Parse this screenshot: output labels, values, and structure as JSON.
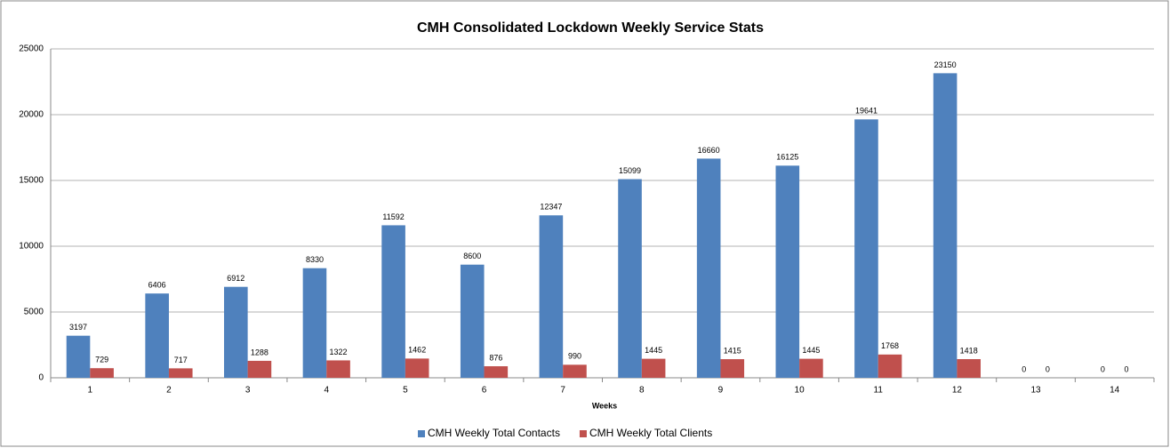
{
  "chart_data": {
    "type": "bar",
    "title": "CMH Consolidated Lockdown Weekly Service Stats",
    "x_label": "Weeks",
    "categories": [
      "1",
      "2",
      "3",
      "4",
      "5",
      "6",
      "7",
      "8",
      "9",
      "10",
      "11",
      "12",
      "13",
      "14"
    ],
    "series": [
      {
        "name": "CMH Weekly Total Contacts",
        "color": "#4f81bd",
        "values": [
          3197,
          6406,
          6912,
          8330,
          11592,
          8600,
          12347,
          15099,
          16660,
          16125,
          19641,
          23150,
          0,
          0
        ]
      },
      {
        "name": "CMH Weekly Total Clients",
        "color": "#c0504d",
        "values": [
          729,
          717,
          1288,
          1322,
          1462,
          876,
          990,
          1445,
          1415,
          1445,
          1768,
          1418,
          0,
          0
        ]
      }
    ],
    "ylim": [
      0,
      25000
    ],
    "yticks": [
      0,
      5000,
      10000,
      15000,
      20000,
      25000
    ],
    "grid": true,
    "legend": "bottom"
  }
}
